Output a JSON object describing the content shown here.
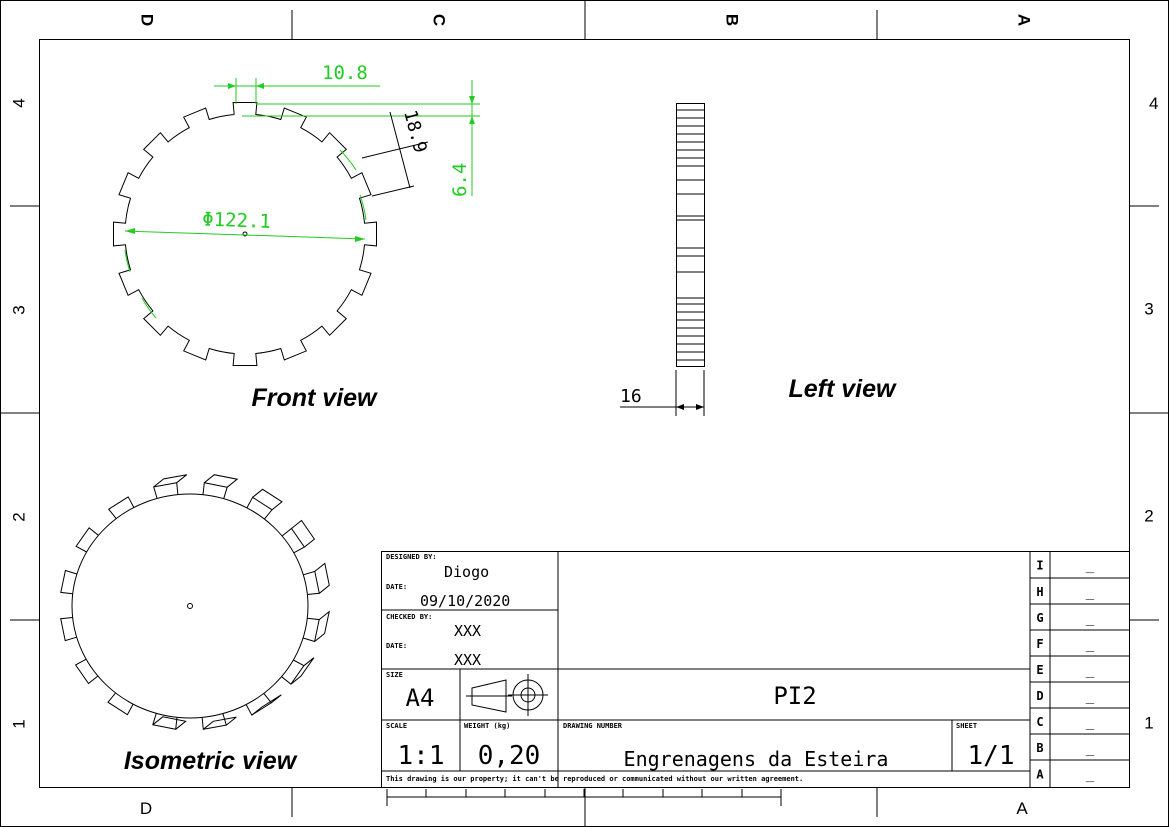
{
  "zones": {
    "columns_top": [
      "D",
      "C",
      "B",
      "A"
    ],
    "columns_bottom": [
      "D",
      "A"
    ],
    "rows": [
      "4",
      "3",
      "2",
      "1"
    ]
  },
  "views": {
    "front": "Front view",
    "left": "Left view",
    "isometric": "Isometric view"
  },
  "dimensions": {
    "diameter": "Φ122.1",
    "tooth_width": "10.8",
    "depth_18_9": "18.9",
    "tooth_height": "6.4",
    "thickness": "16"
  },
  "title_block": {
    "designed_by_label": "DESIGNED BY:",
    "designed_by": "Diogo",
    "date_label": "DATE:",
    "date": "09/10/2020",
    "checked_by_label": "CHECKED BY:",
    "checked_by": "XXX",
    "date2_label": "DATE:",
    "date2": "XXX",
    "size_label": "SIZE",
    "size": "A4",
    "title": "PI2",
    "scale_label": "SCALE",
    "scale": "1:1",
    "weight_label": "WEIGHT (kg)",
    "weight": "0,20",
    "drawing_number_label": "DRAWING NUMBER",
    "drawing_number": "Engrenagens da Esteira",
    "sheet_label": "SHEET",
    "sheet": "1/1",
    "disclaimer": "This drawing is our property; it can't be reproduced or communicated without our written agreement.",
    "revisions": [
      {
        "letter": "I",
        "value": "_"
      },
      {
        "letter": "H",
        "value": "_"
      },
      {
        "letter": "G",
        "value": "_"
      },
      {
        "letter": "F",
        "value": "_"
      },
      {
        "letter": "E",
        "value": "_"
      },
      {
        "letter": "D",
        "value": "_"
      },
      {
        "letter": "C",
        "value": "_"
      },
      {
        "letter": "B",
        "value": "_"
      },
      {
        "letter": "A",
        "value": "_"
      }
    ]
  },
  "colors": {
    "dimension": "#22cc22",
    "line": "#000000"
  }
}
